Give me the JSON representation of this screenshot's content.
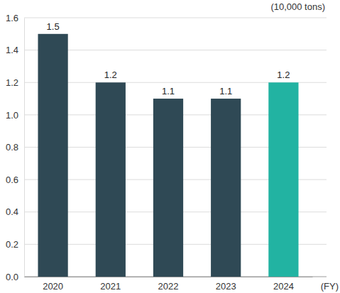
{
  "chart_data": {
    "type": "bar",
    "y_label": "(10,000 tons)",
    "x_label": "(FY)",
    "categories": [
      "2020",
      "2021",
      "2022",
      "2023",
      "2024"
    ],
    "values": [
      1.5,
      1.2,
      1.1,
      1.1,
      1.2
    ],
    "colors": [
      "#2f4955",
      "#2f4955",
      "#2f4955",
      "#2f4955",
      "#22b3a2"
    ],
    "ylim": [
      0,
      1.6
    ],
    "yticks": [
      {
        "value": 0,
        "label": "0.0"
      },
      0.2,
      0.4,
      0.6,
      0.8,
      {
        "value": 1,
        "label": "1.0"
      },
      1.2,
      1.4,
      1.6
    ],
    "grid": true,
    "data_labels": true
  }
}
